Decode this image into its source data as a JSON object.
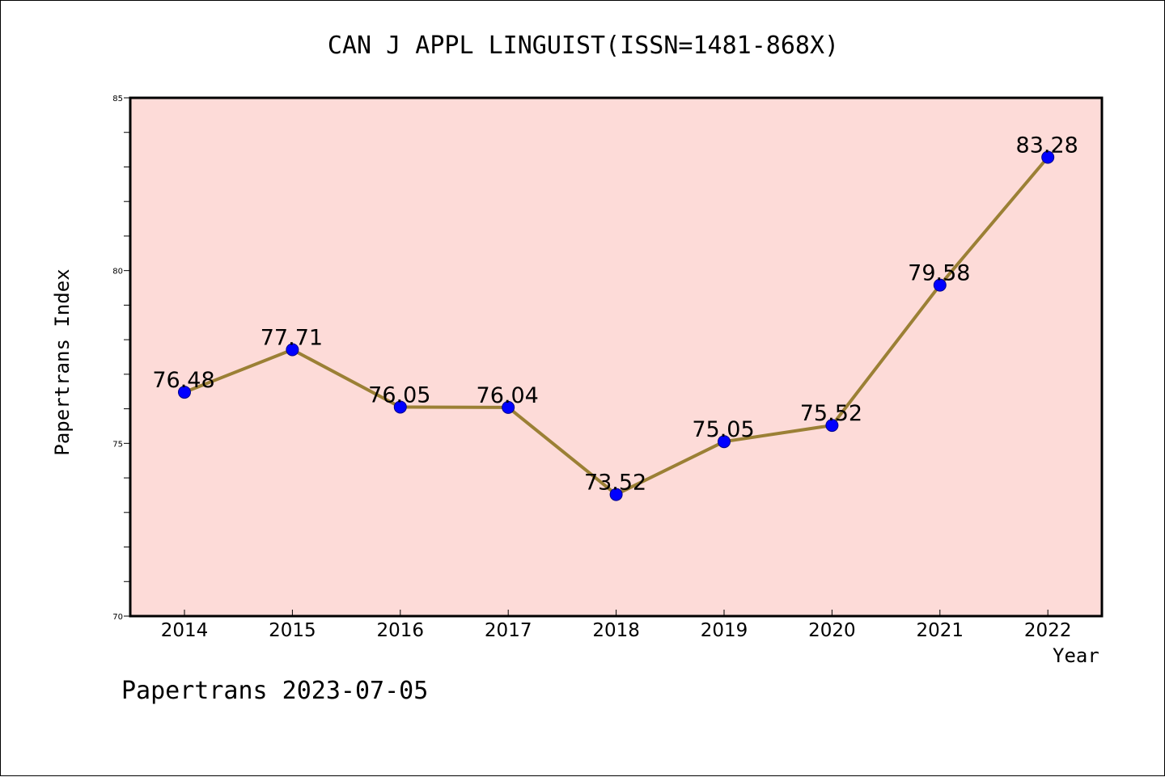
{
  "chart_data": {
    "type": "line",
    "title": "CAN J APPL LINGUIST(ISSN=1481-868X)",
    "xlabel": "Year",
    "ylabel": "Papertrans Index",
    "categories": [
      "2014",
      "2015",
      "2016",
      "2017",
      "2018",
      "2019",
      "2020",
      "2021",
      "2022"
    ],
    "series": [
      {
        "values": [
          76.48,
          77.71,
          76.05,
          76.04,
          73.52,
          75.05,
          75.52,
          79.58,
          83.28
        ],
        "data_labels": [
          "76.48",
          "77.71",
          "76.05",
          "76.04",
          "73.52",
          "75.05",
          "75.52",
          "79.58",
          "83.28"
        ]
      }
    ],
    "ylim": [
      70,
      85
    ],
    "y_ticks": [
      "70",
      "75",
      "80",
      "85"
    ],
    "y_minor_step": 1,
    "grid": false,
    "colors": {
      "plot_background": "#fddbd8",
      "line": "#9b8035",
      "marker": "#0000ff",
      "frame": "#000000"
    }
  },
  "footer": {
    "note": "Papertrans 2023-07-05"
  }
}
